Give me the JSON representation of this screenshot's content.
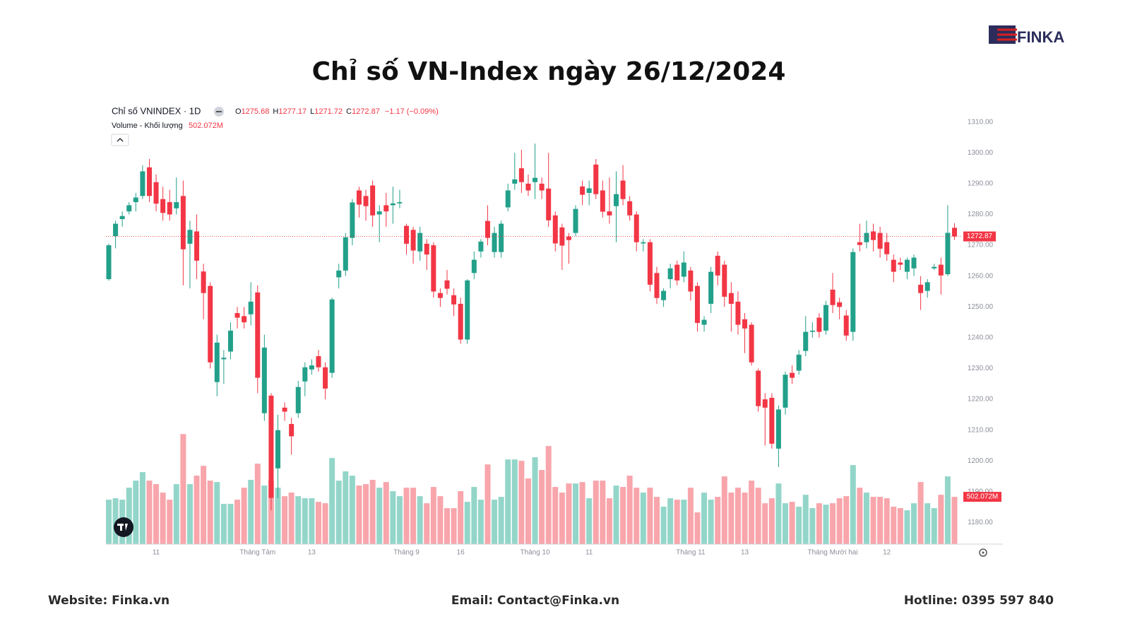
{
  "header": {
    "logo": "FINKA"
  },
  "chart_data": {
    "type": "candlestick",
    "title": "Chỉ số VN-Index ngày 26/12/2024",
    "symbol_label": "Chỉ số VNINDEX · 1D",
    "legend_keys": [
      "O",
      "H",
      "L",
      "C"
    ],
    "change_label": "−1.17 (−0.09%)",
    "categories": [
      null,
      null,
      null,
      null,
      null,
      null,
      null,
      "11",
      null,
      null,
      null,
      null,
      null,
      null,
      null,
      null,
      null,
      null,
      null,
      null,
      null,
      null,
      "Tháng Tám",
      null,
      null,
      null,
      null,
      null,
      null,
      null,
      "13",
      null,
      null,
      null,
      null,
      null,
      null,
      null,
      null,
      null,
      null,
      null,
      null,
      null,
      "Tháng 9",
      null,
      null,
      null,
      null,
      null,
      null,
      null,
      "16",
      null,
      null,
      null,
      null,
      null,
      null,
      null,
      null,
      null,
      null,
      "Tháng 10",
      null,
      null,
      null,
      null,
      null,
      null,
      null,
      "11",
      null,
      null,
      null,
      null,
      null,
      null,
      null,
      null,
      null,
      null,
      null,
      null,
      null,
      null,
      "Tháng 11",
      null,
      null,
      null,
      null,
      null,
      null,
      null,
      "13",
      null,
      null,
      null,
      null,
      null,
      null,
      null,
      null,
      null,
      null,
      null,
      null,
      "Tháng Mười hai",
      null,
      null,
      null,
      null,
      null,
      null,
      null,
      "12",
      null,
      null,
      null,
      null,
      null,
      null,
      null,
      null,
      null,
      null
    ],
    "open": [
      1259,
      1273,
      1278.5,
      1281,
      1284,
      1286,
      1295.3,
      1290.5,
      1285,
      1284,
      1282,
      1286,
      1270.5,
      1274.5,
      1261.5,
      1256.8,
      1225.6,
      1233,
      1235.5,
      1248,
      1247,
      1247.6,
      1254.7,
      1215.5,
      1221.2,
      1197.6,
      1217.3,
      1212,
      1215.5,
      1225.8,
      1229.7,
      1234,
      1230.4,
      1228.6,
      1259.6,
      1261.8,
      1272.4,
      1287.8,
      1286,
      1289.4,
      1280,
      1283,
      1283,
      1283.6,
      1276.3,
      1275,
      1268,
      1270.5,
      1270,
      1254.5,
      1258.6,
      1253.8,
      1251,
      1239.4,
      1261,
      1268,
      1277.9,
      1267.8,
      1267.8,
      1282.3,
      1290,
      1295,
      1290,
      1290.5,
      1290,
      1288.4,
      1279.7,
      1275.8,
      1272.8,
      1274,
      1289.1,
      1287,
      1296.2,
      1287.8,
      1281,
      1282.7,
      1291,
      1284.3,
      1280,
      1270.6,
      1271,
      1261,
      1252.2,
      1259,
      1263.7,
      1259.8,
      1261.8,
      1256.8,
      1244.2,
      1251,
      1266.6,
      1263.7,
      1254.5,
      1251.7,
      1246,
      1244.2,
      1229.3,
      1220,
      1220.5,
      1204,
      1217.3,
      1228.6,
      1229.3,
      1235.7,
      1241.9,
      1246.5,
      1242.3,
      1255.6,
      1251.5,
      1247.2,
      1241.9,
      1271,
      1271,
      1274.5,
      1274,
      1271,
      1265.3,
      1264.4,
      1261.4,
      1262.5,
      1257.2,
      1255.2,
      1262.5,
      1263.7,
      1260.6,
      1275.68
    ],
    "high": [
      1270.5,
      1278,
      1281,
      1284,
      1287,
      1296,
      1298,
      1293,
      1289,
      1288,
      1292,
      1291,
      1278,
      1280,
      1264,
      1258,
      1241,
      1236,
      1245,
      1250,
      1250,
      1258,
      1257,
      1241,
      1222,
      1215,
      1219,
      1214,
      1226,
      1232,
      1233,
      1236,
      1232,
      1253,
      1264,
      1274,
      1285,
      1289,
      1288,
      1291,
      1283,
      1287,
      1289,
      1288,
      1277,
      1276,
      1276,
      1272,
      1271,
      1256,
      1262,
      1256,
      1253,
      1259,
      1268,
      1272,
      1283,
      1276,
      1278,
      1290,
      1300,
      1301,
      1293,
      1303,
      1292,
      1300,
      1281,
      1277,
      1274,
      1283,
      1291,
      1291,
      1298,
      1291,
      1292,
      1294,
      1296,
      1286,
      1281,
      1272,
      1272,
      1263,
      1256,
      1264,
      1265,
      1268,
      1263,
      1258,
      1247,
      1263,
      1268,
      1265,
      1258,
      1255,
      1248,
      1245,
      1230,
      1222,
      1222,
      1218,
      1229,
      1231,
      1236,
      1247,
      1245,
      1248,
      1252,
      1261,
      1253,
      1249,
      1269,
      1277,
      1278,
      1277,
      1276,
      1274,
      1267,
      1266,
      1266,
      1267,
      1260,
      1259,
      1264,
      1266,
      1283,
      1277.17
    ],
    "low": [
      1258.5,
      1269,
      1276,
      1280,
      1281,
      1285,
      1284,
      1281,
      1278,
      1278,
      1280,
      1257,
      1256,
      1259,
      1246,
      1230,
      1221,
      1225,
      1233,
      1243,
      1243,
      1244,
      1222,
      1213,
      1184,
      1188,
      1213,
      1202,
      1214,
      1221,
      1228,
      1229,
      1220,
      1227,
      1256,
      1260,
      1270,
      1279,
      1278,
      1276,
      1271,
      1276,
      1277,
      1282,
      1267,
      1264,
      1265,
      1262,
      1253,
      1250,
      1254,
      1247,
      1238,
      1238,
      1259,
      1266,
      1270,
      1266,
      1266,
      1281,
      1288,
      1287,
      1286,
      1285,
      1285,
      1276,
      1268,
      1262,
      1264,
      1273,
      1283,
      1283,
      1285,
      1279,
      1277,
      1271,
      1283,
      1278,
      1268,
      1268,
      1255,
      1251,
      1250,
      1256,
      1257,
      1258,
      1252,
      1242,
      1242,
      1248,
      1257,
      1250,
      1242,
      1241,
      1235,
      1231,
      1216,
      1205,
      1204,
      1198,
      1215,
      1225,
      1228,
      1234,
      1240,
      1240,
      1241,
      1248,
      1246,
      1239,
      1239,
      1268,
      1269,
      1268,
      1266,
      1265,
      1258,
      1262,
      1259,
      1260,
      1249,
      1253,
      1262,
      1254,
      1260,
      1271.72
    ],
    "close": [
      1270,
      1277,
      1279.5,
      1283,
      1285.5,
      1294,
      1286,
      1283.5,
      1280.5,
      1280,
      1284,
      1268.7,
      1275,
      1265,
      1254.5,
      1232,
      1238.4,
      1233.5,
      1242.3,
      1246.5,
      1245,
      1251.7,
      1227,
      1236.8,
      1188,
      1210,
      1216,
      1208,
      1224,
      1230.4,
      1231,
      1230.4,
      1223.5,
      1252.4,
      1261.8,
      1272.6,
      1283.9,
      1283.2,
      1282.7,
      1279.7,
      1281,
      1281,
      1283.6,
      1284,
      1270.5,
      1268.3,
      1274,
      1267,
      1255,
      1252.9,
      1255.9,
      1250.8,
      1239.4,
      1258.6,
      1265.3,
      1271.2,
      1272.4,
      1274,
      1277,
      1287.8,
      1291.4,
      1290.5,
      1287.8,
      1291.9,
      1287.8,
      1278.1,
      1270.6,
      1269.9,
      1271.7,
      1281.8,
      1286.4,
      1288.5,
      1286.6,
      1280.9,
      1279.7,
      1286.6,
      1285,
      1279.7,
      1271,
      1271,
      1257.2,
      1252.9,
      1255.2,
      1262.5,
      1258.6,
      1264.4,
      1255,
      1244.8,
      1245.8,
      1261.4,
      1260.2,
      1253.3,
      1251,
      1244.2,
      1243,
      1232,
      1217.8,
      1217.3,
      1205.6,
      1216.7,
      1228,
      1227,
      1234.5,
      1241.9,
      1242.3,
      1241.9,
      1250.6,
      1250.6,
      1250,
      1240.7,
      1267.8,
      1270.1,
      1274,
      1271.7,
      1268.9,
      1267.1,
      1261.4,
      1263.7,
      1265.3,
      1266,
      1254.5,
      1258,
      1263,
      1260.2,
      1274.04,
      1272.87
    ],
    "volume": {
      "name": "Volume - Khối lượng",
      "last_label": "502.072M",
      "values": [
        472,
        487,
        472,
        599,
        674,
        764,
        674,
        637,
        547,
        472,
        637,
        1168,
        637,
        727,
        831,
        674,
        659,
        427,
        427,
        472,
        599,
        682,
        854,
        622,
        674,
        599,
        509,
        547,
        509,
        487,
        487,
        449,
        434,
        914,
        674,
        772,
        727,
        622,
        637,
        682,
        599,
        659,
        562,
        509,
        599,
        599,
        509,
        434,
        607,
        509,
        382,
        382,
        562,
        449,
        607,
        472,
        846,
        472,
        502,
        899,
        899,
        884,
        697,
        922,
        787,
        1041,
        607,
        547,
        644,
        644,
        659,
        487,
        674,
        674,
        487,
        622,
        607,
        727,
        599,
        547,
        599,
        502,
        397,
        487,
        472,
        472,
        599,
        337,
        547,
        472,
        502,
        719,
        547,
        599,
        547,
        674,
        599,
        434,
        487,
        644,
        434,
        449,
        397,
        524,
        382,
        434,
        419,
        434,
        487,
        509,
        839,
        599,
        547,
        502,
        502,
        487,
        397,
        382,
        359,
        434,
        659,
        434,
        382,
        524,
        719,
        502.072
      ]
    },
    "ylim": [
      1173,
      1317.5
    ],
    "yticks": [
      {
        "value": 1180,
        "label": "1180.00"
      },
      {
        "value": 1190,
        "label": "1190.00"
      },
      {
        "value": 1200,
        "label": "1200.00"
      },
      {
        "value": 1210,
        "label": "1210.00"
      },
      {
        "value": 1220,
        "label": "1220.00"
      },
      {
        "value": 1230,
        "label": "1230.00"
      },
      {
        "value": 1240,
        "label": "1240.00"
      },
      {
        "value": 1250,
        "label": "1250.00"
      },
      {
        "value": 1260,
        "label": "1260.00"
      },
      {
        "value": 1270,
        "label": "1270.00"
      },
      {
        "value": 1280,
        "label": "1280.00"
      },
      {
        "value": 1290,
        "label": "1290.00"
      },
      {
        "value": 1300,
        "label": "1300.00"
      },
      {
        "value": 1310,
        "label": "1310.00"
      }
    ],
    "volume_ylim": [
      0,
      1500
    ],
    "up_color": "#22a08a",
    "down_color": "#f23645",
    "volume_up_color": "#93d6c9",
    "volume_down_color": "#f8a5ab",
    "grid": false,
    "last_price_line": true
  },
  "footer": {
    "website": "Website: Finka.vn",
    "email": "Email: Contact@Finka.vn",
    "hotline": "Hotline: 0395 597 840"
  }
}
